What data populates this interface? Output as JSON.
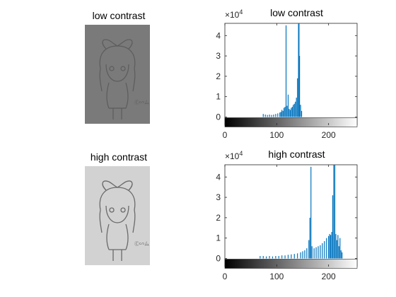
{
  "panels": {
    "low_image_title": "low contrast",
    "high_image_title": "high contrast"
  },
  "colors": {
    "bar": "#0072bd",
    "axis": "#262626",
    "low_image_bg": "#7a7a7a",
    "low_image_line": "#5c5c5c",
    "high_image_bg": "#d2d2d2",
    "high_image_line": "#6a6a6a"
  },
  "chart_data": [
    {
      "type": "bar",
      "title": "low contrast",
      "exponent_label": "×10",
      "exponent_power": "4",
      "xlim": [
        0,
        255
      ],
      "ylim": [
        -0.4,
        4.6
      ],
      "xticks": [
        "0",
        "100",
        "200"
      ],
      "xtick_values": [
        0,
        100,
        200
      ],
      "yticks": [
        "0",
        "1",
        "2",
        "3",
        "4"
      ],
      "ytick_values": [
        0,
        1,
        2,
        3,
        4
      ],
      "colorbar": "grayscale 0-255",
      "bars": [
        {
          "x": 74,
          "y": 0.15
        },
        {
          "x": 78,
          "y": 0.12
        },
        {
          "x": 82,
          "y": 0.1
        },
        {
          "x": 86,
          "y": 0.12
        },
        {
          "x": 90,
          "y": 0.1
        },
        {
          "x": 94,
          "y": 0.12
        },
        {
          "x": 98,
          "y": 0.15
        },
        {
          "x": 102,
          "y": 0.18
        },
        {
          "x": 106,
          "y": 0.22
        },
        {
          "x": 108,
          "y": 0.25
        },
        {
          "x": 110,
          "y": 0.35
        },
        {
          "x": 112,
          "y": 0.3
        },
        {
          "x": 114,
          "y": 0.45
        },
        {
          "x": 116,
          "y": 0.5
        },
        {
          "x": 118,
          "y": 4.5
        },
        {
          "x": 120,
          "y": 0.55
        },
        {
          "x": 122,
          "y": 1.1
        },
        {
          "x": 124,
          "y": 0.4
        },
        {
          "x": 126,
          "y": 0.35
        },
        {
          "x": 128,
          "y": 0.45
        },
        {
          "x": 130,
          "y": 0.5
        },
        {
          "x": 132,
          "y": 0.6
        },
        {
          "x": 134,
          "y": 0.65
        },
        {
          "x": 136,
          "y": 0.75
        },
        {
          "x": 138,
          "y": 0.95
        },
        {
          "x": 140,
          "y": 1.9
        },
        {
          "x": 142,
          "y": 4.6
        },
        {
          "x": 143,
          "y": 4.6
        },
        {
          "x": 144,
          "y": 3.0
        },
        {
          "x": 146,
          "y": 0.6
        },
        {
          "x": 148,
          "y": 0.3
        }
      ]
    },
    {
      "type": "bar",
      "title": "high contrast",
      "exponent_label": "×10",
      "exponent_power": "4",
      "xlim": [
        0,
        255
      ],
      "ylim": [
        -0.4,
        4.6
      ],
      "xticks": [
        "0",
        "100",
        "200"
      ],
      "xtick_values": [
        0,
        100,
        200
      ],
      "yticks": [
        "0",
        "1",
        "2",
        "3",
        "4"
      ],
      "ytick_values": [
        0,
        1,
        2,
        3,
        4
      ],
      "colorbar": "grayscale 0-255",
      "bars": [
        {
          "x": 68,
          "y": 0.12
        },
        {
          "x": 74,
          "y": 0.12
        },
        {
          "x": 80,
          "y": 0.1
        },
        {
          "x": 86,
          "y": 0.12
        },
        {
          "x": 92,
          "y": 0.1
        },
        {
          "x": 98,
          "y": 0.12
        },
        {
          "x": 104,
          "y": 0.12
        },
        {
          "x": 110,
          "y": 0.15
        },
        {
          "x": 116,
          "y": 0.15
        },
        {
          "x": 122,
          "y": 0.18
        },
        {
          "x": 128,
          "y": 0.2
        },
        {
          "x": 134,
          "y": 0.22
        },
        {
          "x": 140,
          "y": 0.25
        },
        {
          "x": 146,
          "y": 0.3
        },
        {
          "x": 150,
          "y": 0.35
        },
        {
          "x": 154,
          "y": 0.4
        },
        {
          "x": 158,
          "y": 0.5
        },
        {
          "x": 162,
          "y": 0.9
        },
        {
          "x": 164,
          "y": 2.0
        },
        {
          "x": 166,
          "y": 4.5
        },
        {
          "x": 168,
          "y": 0.6
        },
        {
          "x": 172,
          "y": 0.5
        },
        {
          "x": 176,
          "y": 0.55
        },
        {
          "x": 180,
          "y": 0.6
        },
        {
          "x": 184,
          "y": 0.65
        },
        {
          "x": 188,
          "y": 0.75
        },
        {
          "x": 192,
          "y": 0.85
        },
        {
          "x": 196,
          "y": 1.0
        },
        {
          "x": 200,
          "y": 1.1
        },
        {
          "x": 202,
          "y": 1.2
        },
        {
          "x": 204,
          "y": 1.15
        },
        {
          "x": 206,
          "y": 1.3
        },
        {
          "x": 208,
          "y": 3.1
        },
        {
          "x": 210,
          "y": 4.6
        },
        {
          "x": 212,
          "y": 4.6
        },
        {
          "x": 214,
          "y": 1.2
        },
        {
          "x": 216,
          "y": 0.9
        },
        {
          "x": 218,
          "y": 1.15
        },
        {
          "x": 220,
          "y": 0.6
        },
        {
          "x": 222,
          "y": 1.0
        },
        {
          "x": 224,
          "y": 0.4
        },
        {
          "x": 226,
          "y": 0.3
        }
      ]
    }
  ]
}
